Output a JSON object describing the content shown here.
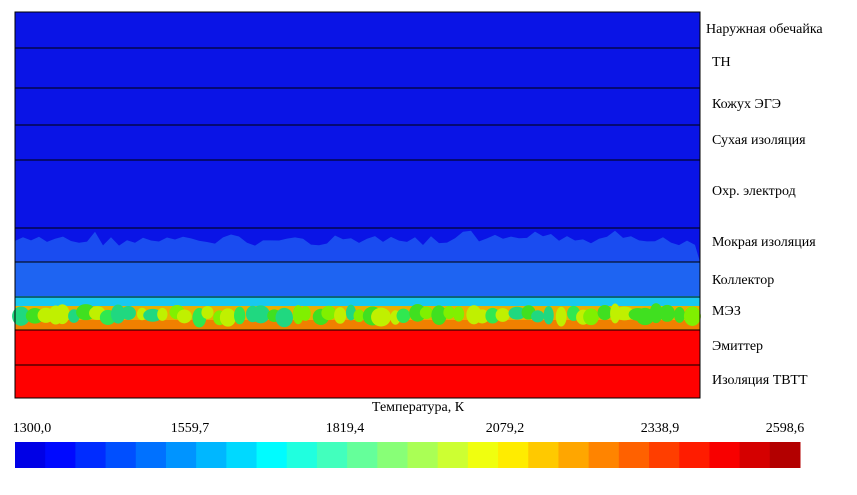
{
  "layers": [
    "Наружная обечайка",
    "ТН",
    "Кожух ЭГЭ",
    "Сухая изоляция",
    "Охр. электрод",
    "Мокрая изоляция",
    "Коллектор",
    "МЭЗ",
    "Эмиттер",
    "Изоляция ТВТТ"
  ],
  "colorbar": {
    "title": "Температура, К",
    "ticks": [
      "1300,0",
      "1559,7",
      "1819,4",
      "2079,2",
      "2338,9",
      "2598,6"
    ]
  }
}
